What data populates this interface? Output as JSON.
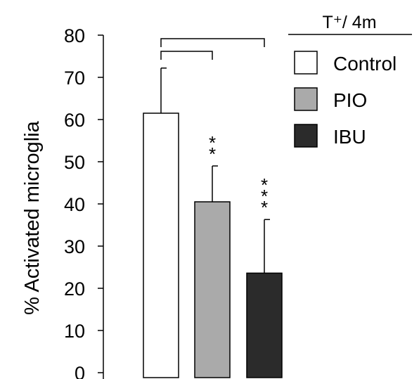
{
  "chart_data": {
    "type": "bar",
    "ylabel": "% Activated microglia",
    "ylim": [
      0,
      80
    ],
    "yticks": [
      0,
      10,
      20,
      30,
      40,
      50,
      60,
      70,
      80
    ],
    "legend_title": "T⁺/ 4m",
    "legend_position": "top-right",
    "grid": false,
    "bars": [
      {
        "name": "Control",
        "value": 61.5,
        "error_upper": 72.2,
        "significance": "",
        "color": "#ffffff"
      },
      {
        "name": "PIO",
        "value": 40.5,
        "error_upper": 49.0,
        "significance": "**",
        "color": "#aaaaaa"
      },
      {
        "name": "IBU",
        "value": 23.6,
        "error_upper": 36.3,
        "significance": "***",
        "color": "#2b2b2b"
      }
    ]
  }
}
